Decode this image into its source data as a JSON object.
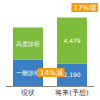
{
  "chart_data": {
    "type": "bar",
    "stacked": true,
    "tick_labels": "x",
    "categories": [
      "現状",
      "将来(予想)"
    ],
    "series": [
      {
        "name": "一般診療",
        "color": "#3a7fc4",
        "values": [
          2547,
          2190
        ],
        "value_labels": [
          null,
          "2,190"
        ]
      },
      {
        "name": "高度診療",
        "color": "#7dbb3c",
        "values": [
          3150,
          4479
        ],
        "value_labels": [
          null,
          "4,479"
        ]
      }
    ],
    "ylim": [
      0,
      7000
    ],
    "annotations": [
      "17%増",
      "14%減"
    ]
  }
}
